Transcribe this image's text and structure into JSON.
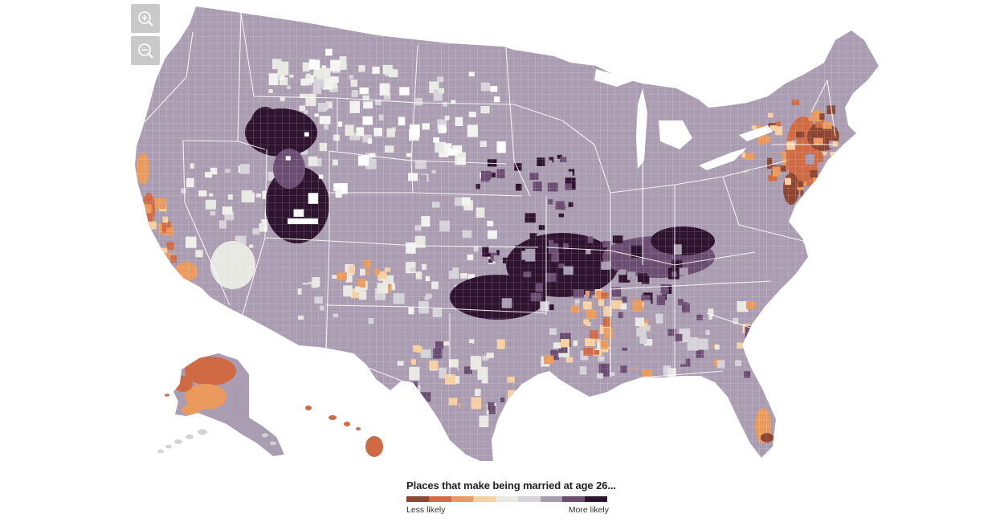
{
  "map": {
    "zoom_in_icon": "zoom-in-icon",
    "zoom_out_icon": "zoom-out-icon",
    "palette": {
      "less_3": "#8e4632",
      "less_2": "#d06a45",
      "less_1": "#e99a5c",
      "less_0": "#f6cfa2",
      "neutral": "#e9e9e4",
      "more_0": "#d6d2da",
      "more_1": "#a99bb0",
      "more_2": "#6b4d72",
      "more_3": "#2f1430"
    }
  },
  "legend": {
    "title": "Places that make being married at age 26...",
    "low_label": "Less likely",
    "high_label": "More likely",
    "colors": [
      "#8e4632",
      "#d06a45",
      "#e99a5c",
      "#f6cfa2",
      "#e9e9e4",
      "#d6d2da",
      "#a99bb0",
      "#6b4d72",
      "#2f1430"
    ]
  }
}
